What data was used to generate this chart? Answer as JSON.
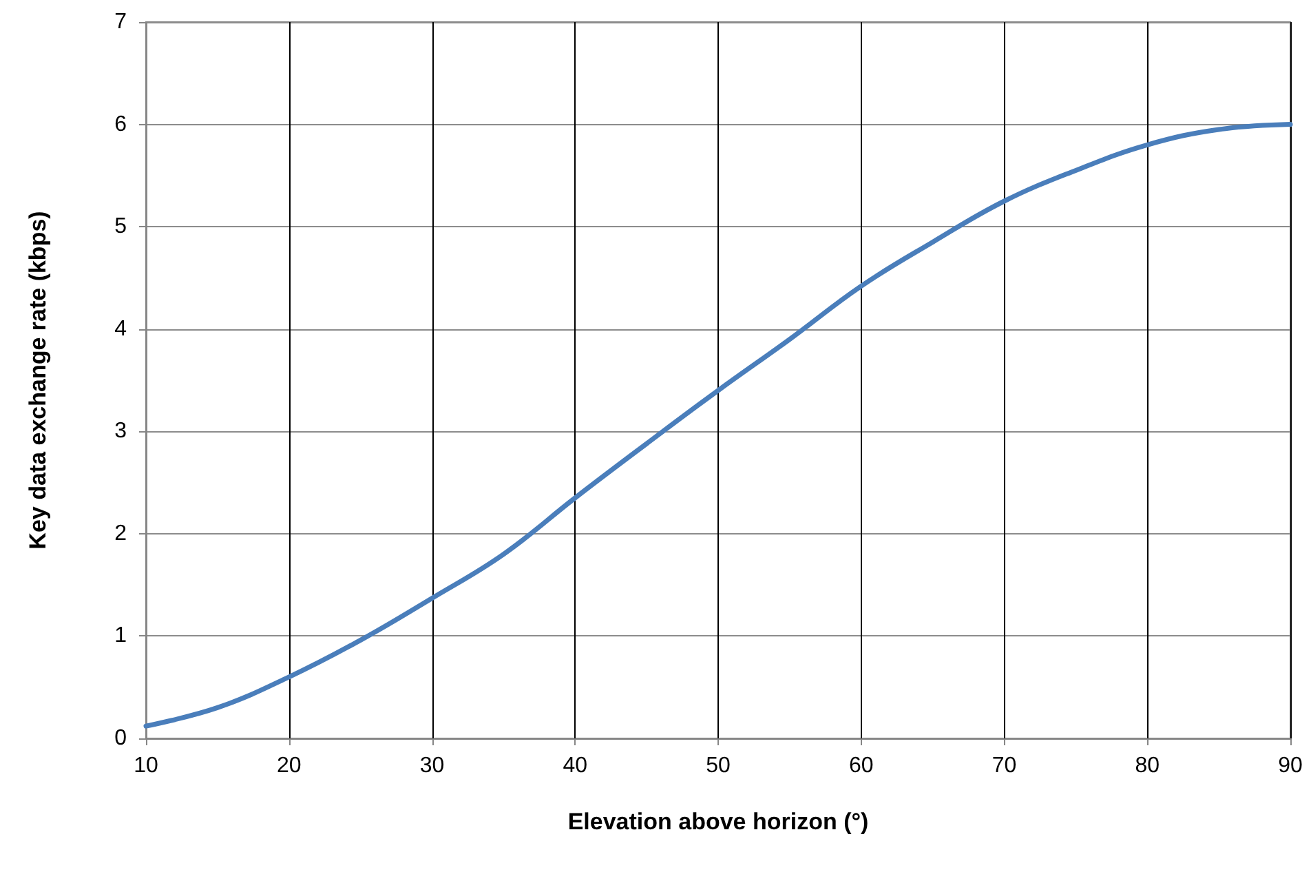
{
  "chart_data": {
    "type": "line",
    "xlabel": "Elevation above horizon (°)",
    "ylabel": "Key data exchange rate (kbps)",
    "x": [
      10,
      15,
      20,
      25,
      30,
      35,
      40,
      45,
      50,
      55,
      60,
      65,
      70,
      75,
      80,
      85,
      90
    ],
    "series": [
      {
        "color": "#4a7ebb",
        "values": [
          0.12,
          0.3,
          0.6,
          0.96,
          1.37,
          1.8,
          2.35,
          2.88,
          3.4,
          3.9,
          4.42,
          4.85,
          5.25,
          5.55,
          5.8,
          5.95,
          6.0
        ]
      }
    ],
    "xlim": [
      10,
      90
    ],
    "xticks": [
      10,
      20,
      30,
      40,
      50,
      60,
      70,
      80,
      90
    ],
    "ylim": [
      0,
      7
    ],
    "yticks": [
      0,
      1,
      2,
      3,
      4,
      5,
      6,
      7
    ],
    "grid": true,
    "marker": "none",
    "line_style": "solid"
  }
}
